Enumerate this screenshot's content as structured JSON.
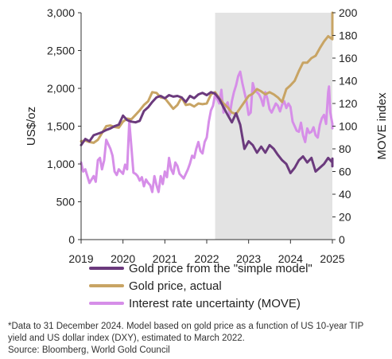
{
  "chart_data": {
    "type": "line",
    "x_range": [
      2019.0,
      2025.0
    ],
    "x_ticks": [
      "2019",
      "2020",
      "2021",
      "2022",
      "2023",
      "2024",
      "2025"
    ],
    "ylabel_left": "US$/oz",
    "ylim_left": [
      0,
      3000
    ],
    "y_ticks_left": [
      "0",
      "500",
      "1,000",
      "1,500",
      "2,000",
      "2,500",
      "3,000"
    ],
    "ylabel_right": "MOVE index",
    "ylim_right": [
      0,
      200
    ],
    "y_ticks_right": [
      "0",
      "20",
      "40",
      "60",
      "80",
      "100",
      "120",
      "140",
      "160",
      "180",
      "200"
    ],
    "shaded_region": [
      2022.2,
      2025.0
    ],
    "grid": false,
    "series": [
      {
        "name": "Gold price from the \"simple model\"",
        "axis": "left",
        "color": "#6b3a7d",
        "points": [
          [
            2019.0,
            1250
          ],
          [
            2019.1,
            1330
          ],
          [
            2019.2,
            1300
          ],
          [
            2019.3,
            1380
          ],
          [
            2019.4,
            1400
          ],
          [
            2019.5,
            1420
          ],
          [
            2019.6,
            1450
          ],
          [
            2019.7,
            1470
          ],
          [
            2019.8,
            1500
          ],
          [
            2019.9,
            1520
          ],
          [
            2020.0,
            1640
          ],
          [
            2020.1,
            1580
          ],
          [
            2020.2,
            1560
          ],
          [
            2020.3,
            1550
          ],
          [
            2020.4,
            1570
          ],
          [
            2020.5,
            1700
          ],
          [
            2020.6,
            1750
          ],
          [
            2020.7,
            1820
          ],
          [
            2020.8,
            1880
          ],
          [
            2020.9,
            1900
          ],
          [
            2021.0,
            1870
          ],
          [
            2021.1,
            1910
          ],
          [
            2021.2,
            1890
          ],
          [
            2021.3,
            1900
          ],
          [
            2021.4,
            1880
          ],
          [
            2021.5,
            1820
          ],
          [
            2021.6,
            1900
          ],
          [
            2021.7,
            1870
          ],
          [
            2021.8,
            1920
          ],
          [
            2021.9,
            1940
          ],
          [
            2022.0,
            1910
          ],
          [
            2022.1,
            1950
          ],
          [
            2022.2,
            1930
          ],
          [
            2022.3,
            1860
          ],
          [
            2022.4,
            1750
          ],
          [
            2022.5,
            1650
          ],
          [
            2022.6,
            1550
          ],
          [
            2022.7,
            1670
          ],
          [
            2022.8,
            1520
          ],
          [
            2022.9,
            1200
          ],
          [
            2023.0,
            1300
          ],
          [
            2023.1,
            1250
          ],
          [
            2023.2,
            1150
          ],
          [
            2023.3,
            1230
          ],
          [
            2023.4,
            1150
          ],
          [
            2023.5,
            1250
          ],
          [
            2023.6,
            1200
          ],
          [
            2023.7,
            1120
          ],
          [
            2023.8,
            1050
          ],
          [
            2023.9,
            1000
          ],
          [
            2024.0,
            880
          ],
          [
            2024.1,
            950
          ],
          [
            2024.2,
            1050
          ],
          [
            2024.3,
            1100
          ],
          [
            2024.4,
            1020
          ],
          [
            2024.5,
            1080
          ],
          [
            2024.6,
            900
          ],
          [
            2024.7,
            950
          ],
          [
            2024.8,
            1000
          ],
          [
            2024.9,
            1080
          ],
          [
            2025.0,
            1020
          ],
          [
            2025.1,
            1070
          ],
          [
            2025.2,
            1000
          ],
          [
            2025.3,
            970
          ]
        ]
      },
      {
        "name": "Gold price, actual",
        "axis": "left",
        "color": "#c8a464",
        "points": [
          [
            2019.0,
            1300
          ],
          [
            2019.1,
            1310
          ],
          [
            2019.2,
            1290
          ],
          [
            2019.3,
            1280
          ],
          [
            2019.4,
            1320
          ],
          [
            2019.5,
            1410
          ],
          [
            2019.6,
            1500
          ],
          [
            2019.7,
            1510
          ],
          [
            2019.8,
            1490
          ],
          [
            2019.9,
            1480
          ],
          [
            2020.0,
            1560
          ],
          [
            2020.1,
            1600
          ],
          [
            2020.2,
            1590
          ],
          [
            2020.3,
            1650
          ],
          [
            2020.4,
            1710
          ],
          [
            2020.5,
            1780
          ],
          [
            2020.6,
            1830
          ],
          [
            2020.7,
            1950
          ],
          [
            2020.8,
            1940
          ],
          [
            2020.9,
            1880
          ],
          [
            2021.0,
            1870
          ],
          [
            2021.1,
            1800
          ],
          [
            2021.2,
            1730
          ],
          [
            2021.3,
            1780
          ],
          [
            2021.4,
            1880
          ],
          [
            2021.5,
            1780
          ],
          [
            2021.6,
            1790
          ],
          [
            2021.7,
            1760
          ],
          [
            2021.8,
            1800
          ],
          [
            2021.9,
            1790
          ],
          [
            2022.0,
            1800
          ],
          [
            2022.1,
            1920
          ],
          [
            2022.2,
            1950
          ],
          [
            2022.3,
            1870
          ],
          [
            2022.4,
            1800
          ],
          [
            2022.5,
            1750
          ],
          [
            2022.6,
            1680
          ],
          [
            2022.7,
            1660
          ],
          [
            2022.8,
            1740
          ],
          [
            2022.9,
            1820
          ],
          [
            2023.0,
            1900
          ],
          [
            2023.1,
            1930
          ],
          [
            2023.2,
            1990
          ],
          [
            2023.3,
            1960
          ],
          [
            2023.4,
            1920
          ],
          [
            2023.5,
            1950
          ],
          [
            2023.6,
            1920
          ],
          [
            2023.7,
            1880
          ],
          [
            2023.8,
            1820
          ],
          [
            2023.9,
            1990
          ],
          [
            2024.0,
            2040
          ],
          [
            2024.1,
            2100
          ],
          [
            2024.2,
            2230
          ],
          [
            2024.3,
            2340
          ],
          [
            2024.4,
            2340
          ],
          [
            2024.5,
            2400
          ],
          [
            2024.6,
            2430
          ],
          [
            2024.7,
            2530
          ],
          [
            2024.8,
            2620
          ],
          [
            2024.9,
            2690
          ],
          [
            2025.0,
            2650
          ],
          [
            2025.1,
            2770
          ],
          [
            2025.2,
            2900
          ],
          [
            2025.3,
            3050
          ]
        ]
      },
      {
        "name": "Interest rate uncertainty (MOVE)",
        "axis": "right",
        "color": "#d68ee8",
        "points": [
          [
            2019.0,
            68
          ],
          [
            2019.05,
            60
          ],
          [
            2019.1,
            62
          ],
          [
            2019.2,
            50
          ],
          [
            2019.3,
            56
          ],
          [
            2019.35,
            51
          ],
          [
            2019.4,
            70
          ],
          [
            2019.45,
            72
          ],
          [
            2019.5,
            62
          ],
          [
            2019.55,
            70
          ],
          [
            2019.6,
            88
          ],
          [
            2019.7,
            80
          ],
          [
            2019.75,
            74
          ],
          [
            2019.8,
            60
          ],
          [
            2019.85,
            57
          ],
          [
            2019.9,
            62
          ],
          [
            2020.0,
            58
          ],
          [
            2020.05,
            66
          ],
          [
            2020.1,
            62
          ],
          [
            2020.15,
            104
          ],
          [
            2020.2,
            82
          ],
          [
            2020.25,
            59
          ],
          [
            2020.3,
            58
          ],
          [
            2020.35,
            56
          ],
          [
            2020.4,
            52
          ],
          [
            2020.45,
            55
          ],
          [
            2020.5,
            47
          ],
          [
            2020.55,
            53
          ],
          [
            2020.6,
            50
          ],
          [
            2020.65,
            48
          ],
          [
            2020.7,
            42
          ],
          [
            2020.75,
            56
          ],
          [
            2020.8,
            48
          ],
          [
            2020.85,
            42
          ],
          [
            2020.9,
            56
          ],
          [
            2020.95,
            49
          ],
          [
            2021.0,
            60
          ],
          [
            2021.05,
            55
          ],
          [
            2021.1,
            72
          ],
          [
            2021.15,
            62
          ],
          [
            2021.2,
            58
          ],
          [
            2021.25,
            68
          ],
          [
            2021.3,
            65
          ],
          [
            2021.35,
            58
          ],
          [
            2021.4,
            56
          ],
          [
            2021.45,
            54
          ],
          [
            2021.5,
            58
          ],
          [
            2021.55,
            62
          ],
          [
            2021.6,
            67
          ],
          [
            2021.65,
            74
          ],
          [
            2021.7,
            72
          ],
          [
            2021.75,
            80
          ],
          [
            2021.8,
            86
          ],
          [
            2021.85,
            78
          ],
          [
            2021.9,
            76
          ],
          [
            2021.95,
            86
          ],
          [
            2022.0,
            90
          ],
          [
            2022.05,
            104
          ],
          [
            2022.1,
            114
          ],
          [
            2022.15,
            118
          ],
          [
            2022.2,
            128
          ],
          [
            2022.25,
            124
          ],
          [
            2022.3,
            120
          ],
          [
            2022.35,
            132
          ],
          [
            2022.4,
            112
          ],
          [
            2022.45,
            118
          ],
          [
            2022.5,
            121
          ],
          [
            2022.55,
            110
          ],
          [
            2022.6,
            122
          ],
          [
            2022.65,
            130
          ],
          [
            2022.7,
            136
          ],
          [
            2022.75,
            144
          ],
          [
            2022.8,
            148
          ],
          [
            2022.85,
            138
          ],
          [
            2022.9,
            130
          ],
          [
            2022.95,
            122
          ],
          [
            2023.0,
            110
          ],
          [
            2023.05,
            112
          ],
          [
            2023.1,
            138
          ],
          [
            2023.15,
            131
          ],
          [
            2023.2,
            130
          ],
          [
            2023.25,
            128
          ],
          [
            2023.3,
            124
          ],
          [
            2023.35,
            118
          ],
          [
            2023.4,
            130
          ],
          [
            2023.45,
            124
          ],
          [
            2023.5,
            115
          ],
          [
            2023.55,
            112
          ],
          [
            2023.6,
            116
          ],
          [
            2023.65,
            120
          ],
          [
            2023.7,
            118
          ],
          [
            2023.75,
            113
          ],
          [
            2023.8,
            119
          ],
          [
            2023.85,
            122
          ],
          [
            2023.9,
            116
          ],
          [
            2023.95,
            120
          ],
          [
            2024.0,
            117
          ],
          [
            2024.05,
            104
          ],
          [
            2024.1,
            100
          ],
          [
            2024.15,
            96
          ],
          [
            2024.2,
            95
          ],
          [
            2024.25,
            103
          ],
          [
            2024.3,
            92
          ],
          [
            2024.35,
            86
          ],
          [
            2024.4,
            98
          ],
          [
            2024.45,
            94
          ],
          [
            2024.5,
            95
          ],
          [
            2024.55,
            99
          ],
          [
            2024.6,
            92
          ],
          [
            2024.65,
            90
          ],
          [
            2024.7,
            101
          ],
          [
            2024.75,
            107
          ],
          [
            2024.8,
            110
          ],
          [
            2024.85,
            102
          ],
          [
            2024.9,
            130
          ],
          [
            2024.92,
            135
          ],
          [
            2024.95,
            112
          ],
          [
            2025.0,
            102
          ],
          [
            2025.05,
            98
          ],
          [
            2025.1,
            100
          ]
        ]
      }
    ]
  },
  "legend": [
    {
      "label": "Gold price from the \"simple model\"",
      "color": "#6b3a7d"
    },
    {
      "label": "Gold price, actual",
      "color": "#c8a464"
    },
    {
      "label": "Interest rate uncertainty (MOVE)",
      "color": "#d68ee8"
    }
  ],
  "footnote": {
    "line1": "*Data to 31 December 2024. Model based on gold price as a function of US 10-year TIP",
    "line2": "yield and US dollar index (DXY), estimated to March 2022.",
    "line3": "Source: Bloomberg, World Gold Council"
  }
}
